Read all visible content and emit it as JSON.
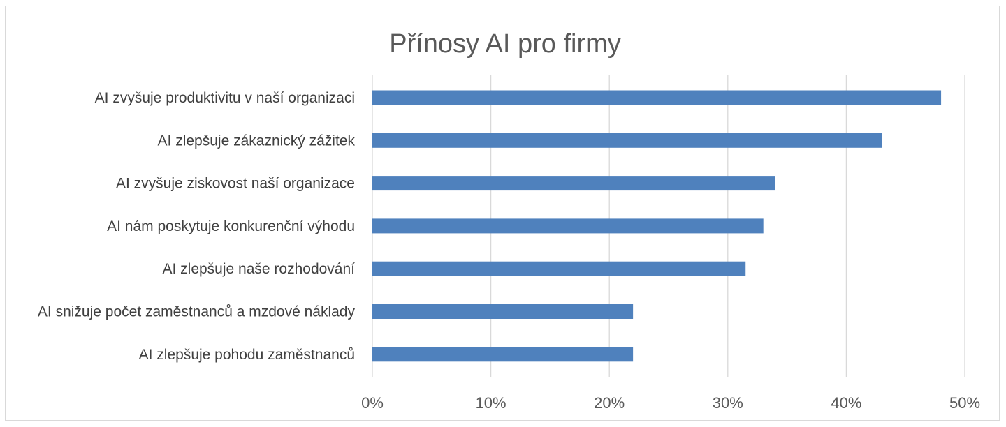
{
  "chart_data": {
    "type": "bar",
    "orientation": "horizontal",
    "title": "Přínosy AI pro firmy",
    "xlabel": "",
    "ylabel": "",
    "categories": [
      "AI zvyšuje produktivitu v naší organizaci",
      "AI zlepšuje zákaznický zážitek",
      "AI zvyšuje ziskovost naší organizace",
      "AI nám poskytuje konkurenční výhodu",
      "AI zlepšuje naše rozhodování",
      "AI snižuje počet zaměstnanců a mzdové náklady",
      "AI zlepšuje pohodu zaměstnanců"
    ],
    "values": [
      48,
      43,
      34,
      33,
      31.5,
      22,
      22
    ],
    "value_unit": "%",
    "xlim": [
      0,
      50
    ],
    "ticks": [
      0,
      10,
      20,
      30,
      40,
      50
    ],
    "tick_labels": [
      "0%",
      "10%",
      "20%",
      "30%",
      "40%",
      "50%"
    ],
    "bar_color": "#4f81bd",
    "grid": "vertical",
    "legend": "none"
  }
}
